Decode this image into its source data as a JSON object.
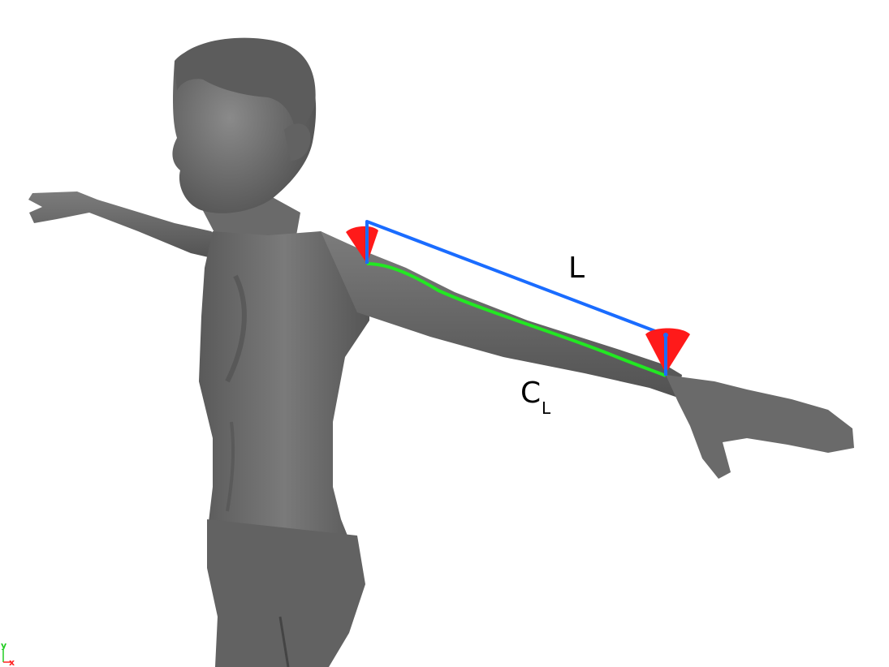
{
  "labels": {
    "length": "L",
    "curve_main": "C",
    "curve_sub": "L"
  },
  "axis_gizmo": {
    "y_label": "y",
    "x_label": "x"
  },
  "colors": {
    "background": "#ffffff",
    "body": "#6e6e6e",
    "body_shadow": "#4a4a4a",
    "body_highlight": "#8a8a8a",
    "segment_line": "#1a6cff",
    "curve_line": "#22e822",
    "joint_cone": "#ff1a1a",
    "axis_y": "#22cc22",
    "axis_x": "#ff2222"
  }
}
